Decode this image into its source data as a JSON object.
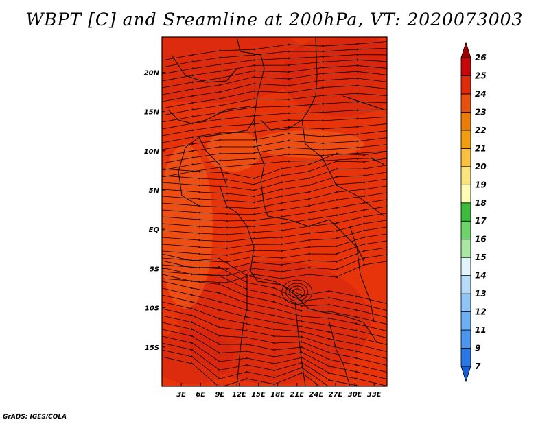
{
  "title": "WBPT [C] and Sreamline at 200hPa, VT: 2020073003",
  "credit": "GrADS: IGES/COLA",
  "map": {
    "lon_range": [
      0,
      35
    ],
    "lat_range": [
      -20,
      24.5
    ],
    "x_ticks": [
      {
        "label": "3E",
        "lon": 3
      },
      {
        "label": "6E",
        "lon": 6
      },
      {
        "label": "9E",
        "lon": 9
      },
      {
        "label": "12E",
        "lon": 12
      },
      {
        "label": "15E",
        "lon": 15
      },
      {
        "label": "18E",
        "lon": 18
      },
      {
        "label": "21E",
        "lon": 21
      },
      {
        "label": "24E",
        "lon": 24
      },
      {
        "label": "27E",
        "lon": 27
      },
      {
        "label": "30E",
        "lon": 30
      },
      {
        "label": "33E",
        "lon": 33
      }
    ],
    "y_ticks": [
      {
        "label": "20N",
        "lat": 20
      },
      {
        "label": "15N",
        "lat": 15
      },
      {
        "label": "10N",
        "lat": 10
      },
      {
        "label": "5N",
        "lat": 5
      },
      {
        "label": "EQ",
        "lat": 0
      },
      {
        "label": "5S",
        "lat": -5
      },
      {
        "label": "10S",
        "lat": -10
      },
      {
        "label": "15S",
        "lat": -15
      }
    ],
    "field_colors": {
      "base": "#e8340a",
      "dark": "#d42410",
      "light": "#f0641e"
    }
  },
  "colorbar": {
    "labels": [
      "7",
      "9",
      "11",
      "12",
      "13",
      "14",
      "15",
      "16",
      "17",
      "18",
      "19",
      "20",
      "21",
      "22",
      "23",
      "24",
      "25",
      "26"
    ],
    "colors": [
      "#1560d8",
      "#2a78e6",
      "#4c96f0",
      "#6eaef4",
      "#8ec6f8",
      "#b6dcfa",
      "#e0f4fc",
      "#a8e8a0",
      "#6cd468",
      "#3cbc3c",
      "#fcfcb4",
      "#fce47c",
      "#fcc040",
      "#f49c10",
      "#ec7c08",
      "#e85010",
      "#e02a0c",
      "#c80808",
      "#a00000"
    ]
  }
}
